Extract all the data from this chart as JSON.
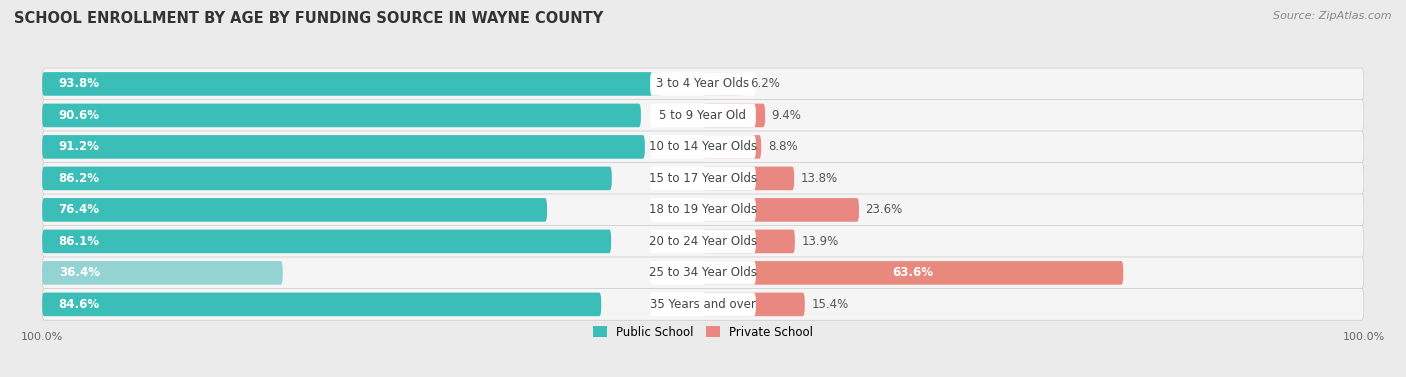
{
  "title": "SCHOOL ENROLLMENT BY AGE BY FUNDING SOURCE IN WAYNE COUNTY",
  "source": "Source: ZipAtlas.com",
  "categories": [
    "3 to 4 Year Olds",
    "5 to 9 Year Old",
    "10 to 14 Year Olds",
    "15 to 17 Year Olds",
    "18 to 19 Year Olds",
    "20 to 24 Year Olds",
    "25 to 34 Year Olds",
    "35 Years and over"
  ],
  "public_values": [
    93.8,
    90.6,
    91.2,
    86.2,
    76.4,
    86.1,
    36.4,
    84.6
  ],
  "private_values": [
    6.2,
    9.4,
    8.8,
    13.8,
    23.6,
    13.9,
    63.6,
    15.4
  ],
  "public_color_normal": "#3bbdb8",
  "public_color_light": "#93d4d2",
  "private_color_normal": "#e88880",
  "private_color_light": "#e8897e",
  "bg_color": "#ebebeb",
  "bar_bg_color": "#f5f5f5",
  "label_fontsize": 8.5,
  "title_fontsize": 10.5,
  "legend_fontsize": 8.5,
  "axis_label_fontsize": 8,
  "special_idx": 6
}
